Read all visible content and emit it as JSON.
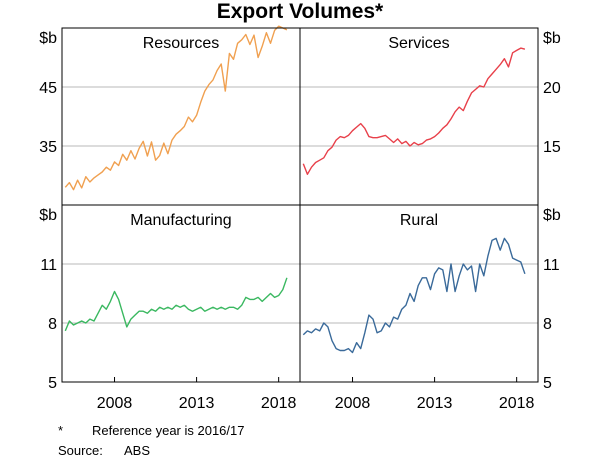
{
  "title": "Export Volumes*",
  "unit_label": "$b",
  "x_ticks": [
    "2008",
    "2013",
    "2018"
  ],
  "footnote": {
    "marker": "*",
    "text": "Reference year is 2016/17"
  },
  "source": {
    "label": "Source:",
    "text": "ABS"
  },
  "chart_data": [
    {
      "type": "line",
      "title": "Resources",
      "color": "#f0a050",
      "axis": "left",
      "ylim": [
        25,
        55
      ],
      "yticks": [
        "35",
        "45"
      ],
      "xlim": [
        2004.8,
        2019.3
      ],
      "x": [
        2005.0,
        2005.25,
        2005.5,
        2005.75,
        2006.0,
        2006.25,
        2006.5,
        2006.75,
        2007.0,
        2007.25,
        2007.5,
        2007.75,
        2008.0,
        2008.25,
        2008.5,
        2008.75,
        2009.0,
        2009.25,
        2009.5,
        2009.75,
        2010.0,
        2010.25,
        2010.5,
        2010.75,
        2011.0,
        2011.25,
        2011.5,
        2011.75,
        2012.0,
        2012.25,
        2012.5,
        2012.75,
        2013.0,
        2013.25,
        2013.5,
        2013.75,
        2014.0,
        2014.25,
        2014.5,
        2014.75,
        2015.0,
        2015.25,
        2015.5,
        2015.75,
        2016.0,
        2016.25,
        2016.5,
        2016.75,
        2017.0,
        2017.25,
        2017.5,
        2017.75,
        2018.0,
        2018.25,
        2018.5
      ],
      "values": [
        28,
        28.8,
        27.6,
        29.2,
        27.9,
        29.8,
        28.9,
        29.6,
        30.1,
        30.6,
        31.4,
        30.9,
        32.3,
        31.7,
        33.6,
        32.6,
        34.2,
        32.8,
        34.6,
        35.8,
        33.3,
        35.7,
        32.6,
        33.4,
        35.5,
        33.7,
        36.0,
        37.0,
        37.6,
        38.3,
        39.9,
        39.1,
        40.2,
        42.4,
        44.3,
        45.4,
        46.2,
        47.8,
        48.9,
        44.3,
        50.7,
        49.7,
        52.4,
        53.0,
        53.9,
        52.2,
        53.8,
        50.0,
        51.9,
        54.2,
        52.4,
        54.6,
        55.3,
        55.0,
        54.7
      ]
    },
    {
      "type": "line",
      "title": "Services",
      "color": "#e8404a",
      "axis": "right",
      "ylim": [
        10,
        25
      ],
      "yticks": [
        "15",
        "20"
      ],
      "xlim": [
        2004.8,
        2019.3
      ],
      "x": [
        2005.0,
        2005.25,
        2005.5,
        2005.75,
        2006.0,
        2006.25,
        2006.5,
        2006.75,
        2007.0,
        2007.25,
        2007.5,
        2007.75,
        2008.0,
        2008.25,
        2008.5,
        2008.75,
        2009.0,
        2009.25,
        2009.5,
        2009.75,
        2010.0,
        2010.25,
        2010.5,
        2010.75,
        2011.0,
        2011.25,
        2011.5,
        2011.75,
        2012.0,
        2012.25,
        2012.5,
        2012.75,
        2013.0,
        2013.25,
        2013.5,
        2013.75,
        2014.0,
        2014.25,
        2014.5,
        2014.75,
        2015.0,
        2015.25,
        2015.5,
        2015.75,
        2016.0,
        2016.25,
        2016.5,
        2016.75,
        2017.0,
        2017.25,
        2017.5,
        2017.75,
        2018.0,
        2018.25,
        2018.5
      ],
      "values": [
        13.5,
        12.6,
        13.2,
        13.6,
        13.8,
        14.0,
        14.6,
        14.9,
        15.5,
        15.8,
        15.7,
        15.9,
        16.3,
        16.6,
        16.9,
        16.5,
        15.8,
        15.7,
        15.7,
        15.8,
        15.9,
        15.6,
        15.3,
        15.6,
        15.2,
        15.4,
        15.0,
        15.3,
        15.1,
        15.2,
        15.5,
        15.6,
        15.8,
        16.1,
        16.5,
        16.8,
        17.3,
        17.9,
        18.3,
        18.0,
        18.8,
        19.5,
        19.8,
        20.1,
        20.0,
        20.7,
        21.1,
        21.5,
        21.9,
        22.4,
        21.7,
        22.9,
        23.1,
        23.3,
        23.2
      ]
    },
    {
      "type": "line",
      "title": "Manufacturing",
      "color": "#3ab860",
      "axis": "left",
      "ylim": [
        5,
        14
      ],
      "yticks": [
        "5",
        "8",
        "11"
      ],
      "xlim": [
        2004.8,
        2019.3
      ],
      "x": [
        2005.0,
        2005.25,
        2005.5,
        2005.75,
        2006.0,
        2006.25,
        2006.5,
        2006.75,
        2007.0,
        2007.25,
        2007.5,
        2007.75,
        2008.0,
        2008.25,
        2008.5,
        2008.75,
        2009.0,
        2009.25,
        2009.5,
        2009.75,
        2010.0,
        2010.25,
        2010.5,
        2010.75,
        2011.0,
        2011.25,
        2011.5,
        2011.75,
        2012.0,
        2012.25,
        2012.5,
        2012.75,
        2013.0,
        2013.25,
        2013.5,
        2013.75,
        2014.0,
        2014.25,
        2014.5,
        2014.75,
        2015.0,
        2015.25,
        2015.5,
        2015.75,
        2016.0,
        2016.25,
        2016.5,
        2016.75,
        2017.0,
        2017.25,
        2017.5,
        2017.75,
        2018.0,
        2018.25,
        2018.5
      ],
      "values": [
        7.6,
        8.1,
        7.9,
        8.0,
        8.1,
        8.0,
        8.2,
        8.1,
        8.5,
        8.9,
        8.7,
        9.1,
        9.6,
        9.2,
        8.5,
        7.8,
        8.2,
        8.4,
        8.6,
        8.6,
        8.5,
        8.7,
        8.6,
        8.8,
        8.7,
        8.8,
        8.7,
        8.9,
        8.8,
        8.9,
        8.7,
        8.6,
        8.7,
        8.8,
        8.6,
        8.7,
        8.8,
        8.7,
        8.8,
        8.7,
        8.8,
        8.8,
        8.7,
        8.9,
        9.3,
        9.2,
        9.2,
        9.3,
        9.1,
        9.3,
        9.5,
        9.3,
        9.4,
        9.7,
        10.3
      ]
    },
    {
      "type": "line",
      "title": "Rural",
      "color": "#3a6a9a",
      "axis": "right",
      "ylim": [
        5,
        14
      ],
      "yticks": [
        "5",
        "8",
        "11"
      ],
      "xlim": [
        2004.8,
        2019.3
      ],
      "x": [
        2005.0,
        2005.25,
        2005.5,
        2005.75,
        2006.0,
        2006.25,
        2006.5,
        2006.75,
        2007.0,
        2007.25,
        2007.5,
        2007.75,
        2008.0,
        2008.25,
        2008.5,
        2008.75,
        2009.0,
        2009.25,
        2009.5,
        2009.75,
        2010.0,
        2010.25,
        2010.5,
        2010.75,
        2011.0,
        2011.25,
        2011.5,
        2011.75,
        2012.0,
        2012.25,
        2012.5,
        2012.75,
        2013.0,
        2013.25,
        2013.5,
        2013.75,
        2014.0,
        2014.25,
        2014.5,
        2014.75,
        2015.0,
        2015.25,
        2015.5,
        2015.75,
        2016.0,
        2016.25,
        2016.5,
        2016.75,
        2017.0,
        2017.25,
        2017.5,
        2017.75,
        2018.0,
        2018.25,
        2018.5
      ],
      "values": [
        7.4,
        7.6,
        7.5,
        7.7,
        7.6,
        8.0,
        7.8,
        7.1,
        6.7,
        6.6,
        6.6,
        6.7,
        6.5,
        7.0,
        6.7,
        7.5,
        8.4,
        8.2,
        7.5,
        7.6,
        8.0,
        7.8,
        8.3,
        8.2,
        8.7,
        8.9,
        9.5,
        9.1,
        9.9,
        10.3,
        10.3,
        9.7,
        10.5,
        10.8,
        10.7,
        9.6,
        11.0,
        9.6,
        10.4,
        11.0,
        10.7,
        10.9,
        9.6,
        11.0,
        10.4,
        11.4,
        12.2,
        12.3,
        11.7,
        12.3,
        12.0,
        11.3,
        11.2,
        11.1,
        10.5
      ]
    }
  ]
}
